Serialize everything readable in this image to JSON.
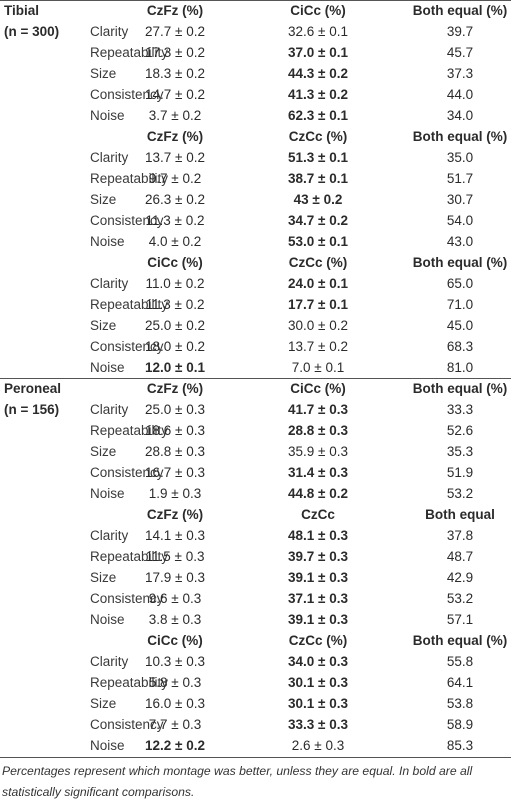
{
  "table": {
    "groups": [
      {
        "name": "Tibial",
        "sample": "(n = 300)",
        "blocks": [
          {
            "headers": [
              "CzFz (%)",
              "CiCc (%)",
              "Both equal (%)"
            ],
            "rows": [
              {
                "label": "Clarity",
                "cells": [
                  "27.7 ± 0.2",
                  "32.6 ± 0.1",
                  "39.7"
                ],
                "bold": [
                  false,
                  false,
                  false
                ]
              },
              {
                "label": "Repeatability",
                "cells": [
                  "17.3 ± 0.2",
                  "37.0 ± 0.1",
                  "45.7"
                ],
                "bold": [
                  false,
                  true,
                  false
                ]
              },
              {
                "label": "Size",
                "cells": [
                  "18.3 ± 0.2",
                  "44.3 ± 0.2",
                  "37.3"
                ],
                "bold": [
                  false,
                  true,
                  false
                ]
              },
              {
                "label": "Consistency",
                "cells": [
                  "14.7 ± 0.2",
                  "41.3 ± 0.2",
                  "44.0"
                ],
                "bold": [
                  false,
                  true,
                  false
                ]
              },
              {
                "label": "Noise",
                "cells": [
                  "3.7 ± 0.2",
                  "62.3 ± 0.1",
                  "34.0"
                ],
                "bold": [
                  false,
                  true,
                  false
                ]
              }
            ]
          },
          {
            "headers": [
              "CzFz (%)",
              "CzCc (%)",
              "Both equal (%)"
            ],
            "rows": [
              {
                "label": "Clarity",
                "cells": [
                  "13.7 ± 0.2",
                  "51.3 ± 0.1",
                  "35.0"
                ],
                "bold": [
                  false,
                  true,
                  false
                ]
              },
              {
                "label": "Repeatability",
                "cells": [
                  "9.7 ± 0.2",
                  "38.7 ± 0.1",
                  "51.7"
                ],
                "bold": [
                  false,
                  true,
                  false
                ]
              },
              {
                "label": "Size",
                "cells": [
                  "26.3 ± 0.2",
                  "43 ± 0.2",
                  "30.7"
                ],
                "bold": [
                  false,
                  true,
                  false
                ]
              },
              {
                "label": "Consistency",
                "cells": [
                  "11.3 ± 0.2",
                  "34.7 ± 0.2",
                  "54.0"
                ],
                "bold": [
                  false,
                  true,
                  false
                ]
              },
              {
                "label": "Noise",
                "cells": [
                  "4.0 ± 0.2",
                  "53.0 ± 0.1",
                  "43.0"
                ],
                "bold": [
                  false,
                  true,
                  false
                ]
              }
            ]
          },
          {
            "headers": [
              "CiCc (%)",
              "CzCc (%)",
              "Both equal (%)"
            ],
            "rows": [
              {
                "label": "Clarity",
                "cells": [
                  "11.0 ± 0.2",
                  "24.0 ± 0.1",
                  "65.0"
                ],
                "bold": [
                  false,
                  true,
                  false
                ]
              },
              {
                "label": "Repeatability",
                "cells": [
                  "11.3 ± 0.2",
                  "17.7 ± 0.1",
                  "71.0"
                ],
                "bold": [
                  false,
                  true,
                  false
                ]
              },
              {
                "label": "Size",
                "cells": [
                  "25.0 ± 0.2",
                  "30.0 ± 0.2",
                  "45.0"
                ],
                "bold": [
                  false,
                  false,
                  false
                ]
              },
              {
                "label": "Consistency",
                "cells": [
                  "18.0 ± 0.2",
                  "13.7 ± 0.2",
                  "68.3"
                ],
                "bold": [
                  false,
                  false,
                  false
                ]
              },
              {
                "label": "Noise",
                "cells": [
                  "12.0 ± 0.1",
                  "7.0 ± 0.1",
                  "81.0"
                ],
                "bold": [
                  true,
                  false,
                  false
                ]
              }
            ]
          }
        ]
      },
      {
        "name": "Peroneal",
        "sample": "(n = 156)",
        "blocks": [
          {
            "headers": [
              "CzFz (%)",
              "CiCc (%)",
              "Both equal (%)"
            ],
            "rows": [
              {
                "label": "Clarity",
                "cells": [
                  "25.0 ± 0.3",
                  "41.7 ± 0.3",
                  "33.3"
                ],
                "bold": [
                  false,
                  true,
                  false
                ]
              },
              {
                "label": "Repeatability",
                "cells": [
                  "18.6 ± 0.3",
                  "28.8 ± 0.3",
                  "52.6"
                ],
                "bold": [
                  false,
                  true,
                  false
                ]
              },
              {
                "label": "Size",
                "cells": [
                  "28.8 ± 0.3",
                  "35.9 ± 0.3",
                  "35.3"
                ],
                "bold": [
                  false,
                  false,
                  false
                ]
              },
              {
                "label": "Consistency",
                "cells": [
                  "16.7 ± 0.3",
                  "31.4 ± 0.3",
                  "51.9"
                ],
                "bold": [
                  false,
                  true,
                  false
                ]
              },
              {
                "label": "Noise",
                "cells": [
                  "1.9 ± 0.3",
                  "44.8 ± 0.2",
                  "53.2"
                ],
                "bold": [
                  false,
                  true,
                  false
                ]
              }
            ]
          },
          {
            "headers": [
              "CzFz (%)",
              "CzCc",
              "Both equal"
            ],
            "rows": [
              {
                "label": "Clarity",
                "cells": [
                  "14.1 ± 0.3",
                  "48.1 ± 0.3",
                  "37.8"
                ],
                "bold": [
                  false,
                  true,
                  false
                ]
              },
              {
                "label": "Repeatability",
                "cells": [
                  "11.5 ± 0.3",
                  "39.7 ± 0.3",
                  "48.7"
                ],
                "bold": [
                  false,
                  true,
                  false
                ]
              },
              {
                "label": "Size",
                "cells": [
                  "17.9 ± 0.3",
                  "39.1 ± 0.3",
                  "42.9"
                ],
                "bold": [
                  false,
                  true,
                  false
                ]
              },
              {
                "label": "Consistency",
                "cells": [
                  "9.6 ± 0.3",
                  "37.1 ± 0.3",
                  "53.2"
                ],
                "bold": [
                  false,
                  true,
                  false
                ]
              },
              {
                "label": "Noise",
                "cells": [
                  "3.8 ± 0.3",
                  "39.1 ± 0.3",
                  "57.1"
                ],
                "bold": [
                  false,
                  true,
                  false
                ]
              }
            ]
          },
          {
            "headers": [
              "CiCc (%)",
              "CzCc (%)",
              "Both equal (%)"
            ],
            "rows": [
              {
                "label": "Clarity",
                "cells": [
                  "10.3 ± 0.3",
                  "34.0 ± 0.3",
                  "55.8"
                ],
                "bold": [
                  false,
                  true,
                  false
                ]
              },
              {
                "label": "Repeatability",
                "cells": [
                  "5.8 ± 0.3",
                  "30.1 ± 0.3",
                  "64.1"
                ],
                "bold": [
                  false,
                  true,
                  false
                ]
              },
              {
                "label": "Size",
                "cells": [
                  "16.0 ± 0.3",
                  "30.1 ± 0.3",
                  "53.8"
                ],
                "bold": [
                  false,
                  true,
                  false
                ]
              },
              {
                "label": "Consistency",
                "cells": [
                  "7.7 ± 0.3",
                  "33.3 ± 0.3",
                  "58.9"
                ],
                "bold": [
                  false,
                  true,
                  false
                ]
              },
              {
                "label": "Noise",
                "cells": [
                  "12.2 ± 0.2",
                  "2.6 ± 0.3",
                  "85.3"
                ],
                "bold": [
                  true,
                  false,
                  false
                ]
              }
            ]
          }
        ]
      }
    ]
  },
  "footnote": "Percentages represent which montage was better, unless they are equal. In bold are all statistically significant comparisons."
}
